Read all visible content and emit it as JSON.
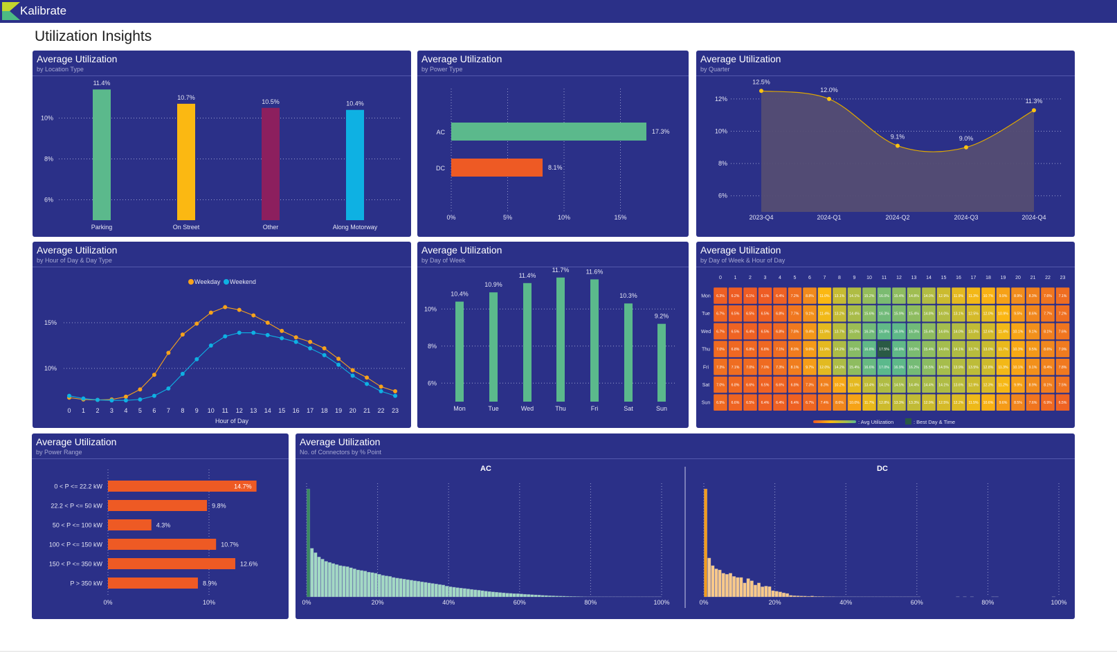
{
  "header": {
    "brand": "Kalibrate"
  },
  "page_title": "Utilization Insights",
  "panels": {
    "location": {
      "title": "Average Utilization",
      "subtitle": "by Location Type"
    },
    "power": {
      "title": "Average Utilization",
      "subtitle": "by Power Type"
    },
    "quarter": {
      "title": "Average Utilization",
      "subtitle": "by Quarter"
    },
    "hour": {
      "title": "Average Utilization",
      "subtitle": "by Hour of Day & Day Type"
    },
    "dow": {
      "title": "Average Utilization",
      "subtitle": "by Day of Week"
    },
    "heatmap": {
      "title": "Average Utilization",
      "subtitle": "by Day of Week & Hour of Day"
    },
    "range": {
      "title": "Average Utilization",
      "subtitle": "by Power Range"
    },
    "hist": {
      "title": "Average Utilization",
      "subtitle": "No. of Connectors by % Point"
    }
  },
  "chart_data": [
    {
      "type": "bar",
      "title": "Average Utilization",
      "subtitle": "by Location Type",
      "categories": [
        "Parking",
        "On Street",
        "Other",
        "Along Motorway"
      ],
      "values": [
        11.4,
        10.7,
        10.5,
        10.4
      ],
      "labels": [
        "11.4%",
        "10.7%",
        "10.5%",
        "10.4%"
      ],
      "colors": [
        "#5bb98c",
        "#fbb812",
        "#8c1f5e",
        "#0eb1e3"
      ],
      "ylim": [
        5,
        11.5
      ],
      "yticks": [
        6,
        8,
        10
      ],
      "grid": true
    },
    {
      "type": "bar",
      "orientation": "horizontal",
      "title": "Average Utilization",
      "subtitle": "by Power Type",
      "categories": [
        "AC",
        "DC"
      ],
      "values": [
        17.3,
        8.1
      ],
      "labels": [
        "17.3%",
        "8.1%"
      ],
      "colors": [
        "#5bb98c",
        "#ee5a24"
      ],
      "xlim": [
        0,
        19
      ],
      "xticks": [
        0,
        5,
        10,
        15
      ],
      "grid": true
    },
    {
      "type": "area",
      "title": "Average Utilization",
      "subtitle": "by Quarter",
      "categories": [
        "2023-Q4",
        "2024-Q1",
        "2024-Q2",
        "2024-Q3",
        "2024-Q4"
      ],
      "values": [
        12.5,
        12.0,
        9.1,
        9.0,
        11.3
      ],
      "labels": [
        "12.5%",
        "12.0%",
        "9.1%",
        "9.0%",
        "11.3%"
      ],
      "line_color": "#e0a800",
      "point_color": "#fbc312",
      "area_color": "#544d73",
      "ylim": [
        5,
        13
      ],
      "yticks": [
        6,
        8,
        10,
        12
      ],
      "grid": true
    },
    {
      "type": "line",
      "title": "Average Utilization",
      "subtitle": "by Hour of Day & Day Type",
      "x": [
        0,
        1,
        2,
        3,
        4,
        5,
        6,
        7,
        8,
        9,
        10,
        11,
        12,
        13,
        14,
        15,
        16,
        17,
        18,
        19,
        20,
        21,
        22,
        23
      ],
      "xlabel": "Hour of Day",
      "legend_position": "top-center",
      "yticks": [
        10,
        15
      ],
      "grid": true,
      "series": [
        {
          "name": "Weekday",
          "color": "#f7a21b",
          "values": [
            6.8,
            6.6,
            6.55,
            6.6,
            6.9,
            7.7,
            9.3,
            11.7,
            13.7,
            14.9,
            16.1,
            16.7,
            16.4,
            15.8,
            15.0,
            14.1,
            13.4,
            12.9,
            12.2,
            11.05,
            9.8,
            9.0,
            8.0,
            7.5
          ]
        },
        {
          "name": "Weekend",
          "color": "#0eb1e3",
          "values": [
            7.0,
            6.7,
            6.55,
            6.5,
            6.5,
            6.6,
            7.0,
            7.8,
            9.4,
            11.0,
            12.5,
            13.5,
            13.9,
            13.9,
            13.65,
            13.3,
            12.9,
            12.2,
            11.45,
            10.4,
            9.2,
            8.3,
            7.5,
            7.0
          ]
        }
      ]
    },
    {
      "type": "bar",
      "title": "Average Utilization",
      "subtitle": "by Day of Week",
      "categories": [
        "Mon",
        "Tue",
        "Wed",
        "Thu",
        "Fri",
        "Sat",
        "Sun"
      ],
      "values": [
        10.4,
        10.9,
        11.4,
        11.7,
        11.6,
        10.3,
        9.2
      ],
      "labels": [
        "10.4%",
        "10.9%",
        "11.4%",
        "11.7%",
        "11.6%",
        "10.3%",
        "9.2%"
      ],
      "color": "#5bb98c",
      "ylim": [
        5,
        12
      ],
      "yticks": [
        6,
        8,
        10
      ],
      "grid": true
    },
    {
      "type": "heatmap",
      "title": "Average Utilization",
      "subtitle": "by Day of Week & Hour of Day",
      "columns": [
        "0",
        "1",
        "2",
        "3",
        "4",
        "5",
        "6",
        "7",
        "8",
        "9",
        "10",
        "11",
        "12",
        "13",
        "14",
        "15",
        "16",
        "17",
        "18",
        "19",
        "20",
        "21",
        "22",
        "23"
      ],
      "rows": [
        "Mon",
        "Tue",
        "Wed",
        "Thu",
        "Fri",
        "Sat",
        "Sun"
      ],
      "values": [
        [
          6.3,
          6.2,
          6.1,
          6.1,
          6.4,
          7.2,
          8.8,
          11.0,
          13.1,
          14.1,
          15.2,
          16.0,
          15.4,
          14.8,
          14.0,
          12.9,
          11.9,
          11.3,
          10.7,
          9.9,
          8.9,
          8.3,
          7.6,
          7.1
        ],
        [
          6.7,
          6.5,
          6.5,
          6.5,
          6.8,
          7.7,
          9.1,
          11.4,
          13.2,
          14.4,
          15.6,
          16.3,
          15.9,
          15.4,
          14.8,
          14.0,
          13.1,
          12.5,
          12.0,
          10.9,
          9.5,
          8.6,
          7.7,
          7.2
        ],
        [
          6.7,
          6.5,
          6.4,
          6.5,
          6.8,
          7.8,
          9.4,
          11.9,
          13.7,
          15.0,
          16.3,
          16.8,
          16.9,
          16.3,
          15.4,
          14.6,
          14.0,
          13.3,
          12.6,
          11.4,
          10.1,
          9.1,
          8.1,
          7.6
        ],
        [
          7.0,
          6.8,
          6.8,
          6.8,
          7.1,
          8.0,
          9.6,
          11.9,
          14.2,
          15.6,
          16.8,
          17.5,
          16.8,
          16.0,
          15.4,
          14.6,
          14.1,
          13.7,
          13.0,
          11.7,
          10.3,
          9.5,
          8.6,
          7.9
        ],
        [
          7.3,
          7.1,
          7.0,
          7.0,
          7.3,
          8.1,
          9.7,
          12.0,
          14.2,
          15.4,
          16.6,
          17.0,
          16.9,
          16.2,
          15.5,
          14.5,
          13.9,
          13.5,
          12.8,
          11.3,
          10.1,
          9.1,
          8.4,
          7.8
        ],
        [
          7.0,
          6.8,
          6.6,
          6.5,
          6.6,
          6.8,
          7.3,
          8.3,
          10.2,
          11.9,
          13.4,
          14.1,
          14.5,
          14.4,
          14.4,
          14.1,
          13.6,
          12.9,
          12.3,
          11.2,
          9.9,
          8.9,
          8.1,
          7.5
        ],
        [
          6.9,
          6.6,
          6.5,
          6.4,
          6.4,
          6.4,
          6.7,
          7.4,
          8.6,
          10.0,
          11.7,
          12.8,
          13.3,
          13.3,
          12.9,
          12.5,
          12.2,
          11.5,
          10.6,
          9.6,
          8.5,
          7.6,
          6.9,
          6.5
        ]
      ],
      "color_scale": [
        "#ee5a24",
        "#f18a1c",
        "#fbb812",
        "#c8bb30",
        "#9bbd55",
        "#5bb98c"
      ],
      "best_color": "#2a5a45",
      "legend": {
        "avg_label": ": Avg Utilization",
        "best_label": ": Best Day & Time"
      }
    },
    {
      "type": "bar",
      "orientation": "horizontal",
      "title": "Average Utilization",
      "subtitle": "by Power Range",
      "categories": [
        "0 < P <= 22.2 kW",
        "22.2 < P <= 50 kW",
        "50 < P <= 100 kW",
        "100 < P <= 150 kW",
        "150 < P <= 350 kW",
        "P > 350 kW"
      ],
      "values": [
        14.7,
        9.8,
        4.3,
        10.7,
        12.6,
        8.9
      ],
      "labels": [
        "14.7%",
        "9.8%",
        "4.3%",
        "10.7%",
        "12.6%",
        "8.9%"
      ],
      "color": "#ee5a24",
      "xticks": [
        0,
        10
      ],
      "grid": true
    },
    {
      "type": "bar",
      "title": "Average Utilization",
      "subtitle": "No. of Connectors by % Point",
      "xticks": [
        0,
        20,
        40,
        60,
        80,
        100
      ],
      "value_units": "relative connector count (max = 100)",
      "series": [
        {
          "name": "AC",
          "highlight": "#3a8a60",
          "color": "#a3d9c4",
          "values": [
            100,
            45,
            41,
            37,
            35,
            33,
            32,
            31,
            30,
            29,
            28.5,
            28,
            27,
            26,
            25,
            24.5,
            24,
            23,
            22.5,
            22,
            21,
            20,
            19.5,
            19,
            18,
            17.5,
            17,
            16.5,
            16,
            15.5,
            15,
            14.5,
            14,
            13.5,
            13,
            12.5,
            12,
            11.5,
            11,
            10,
            9.4,
            9,
            8.6,
            8.2,
            7.8,
            7.4,
            7,
            6.6,
            6.2,
            5.8,
            5.4,
            5,
            4.7,
            4.4,
            4.1,
            3.8,
            3.5,
            3.3,
            3.1,
            3,
            2.8,
            2.5,
            2.3,
            2.1,
            1.9,
            1.7,
            1.5,
            1.3,
            1.1,
            1,
            0.9,
            0.8,
            0.7,
            0.6,
            0.5,
            0.4,
            0.35,
            0.3,
            0.25,
            0.2,
            0.2,
            0.15,
            0.15,
            0.1,
            0.1,
            0.1,
            0.1,
            0.1,
            0.1,
            0.1,
            0.1,
            0.1,
            0.1,
            0.1,
            0.1,
            0.1,
            0.1,
            0.1,
            0.1,
            0.1
          ]
        },
        {
          "name": "DC",
          "highlight": "#f39c1f",
          "color": "#f8c98a",
          "values": [
            100,
            36,
            29,
            26,
            25,
            22,
            21,
            22,
            19,
            18,
            18,
            13,
            17,
            15,
            11,
            13,
            9.4,
            10,
            9.6,
            5.8,
            5.3,
            4.7,
            3.8,
            3.2,
            1.5,
            1.2,
            1,
            0.9,
            0.8,
            0.6,
            0.9,
            0.5,
            0.4,
            0.4,
            0.3,
            0.3,
            0.3,
            0.2,
            0.2,
            0.2,
            0.2,
            0.2,
            0.2,
            0.2,
            0.2,
            0.2,
            0.2,
            0.2,
            0.2,
            0.2,
            0.2,
            0.2,
            0.2,
            0.2,
            0.2,
            0.2,
            0.2,
            0.2,
            0.2,
            0.2,
            0.2,
            0,
            0,
            0,
            0,
            0,
            0,
            0,
            0,
            0,
            0,
            0.2,
            0,
            0.2,
            0,
            0.2,
            0,
            0,
            0,
            0,
            0,
            0.2,
            0.2,
            0,
            0,
            0,
            0,
            0,
            0,
            0,
            0,
            0,
            0,
            0,
            0,
            0,
            0,
            0,
            0.2
          ]
        }
      ]
    }
  ]
}
